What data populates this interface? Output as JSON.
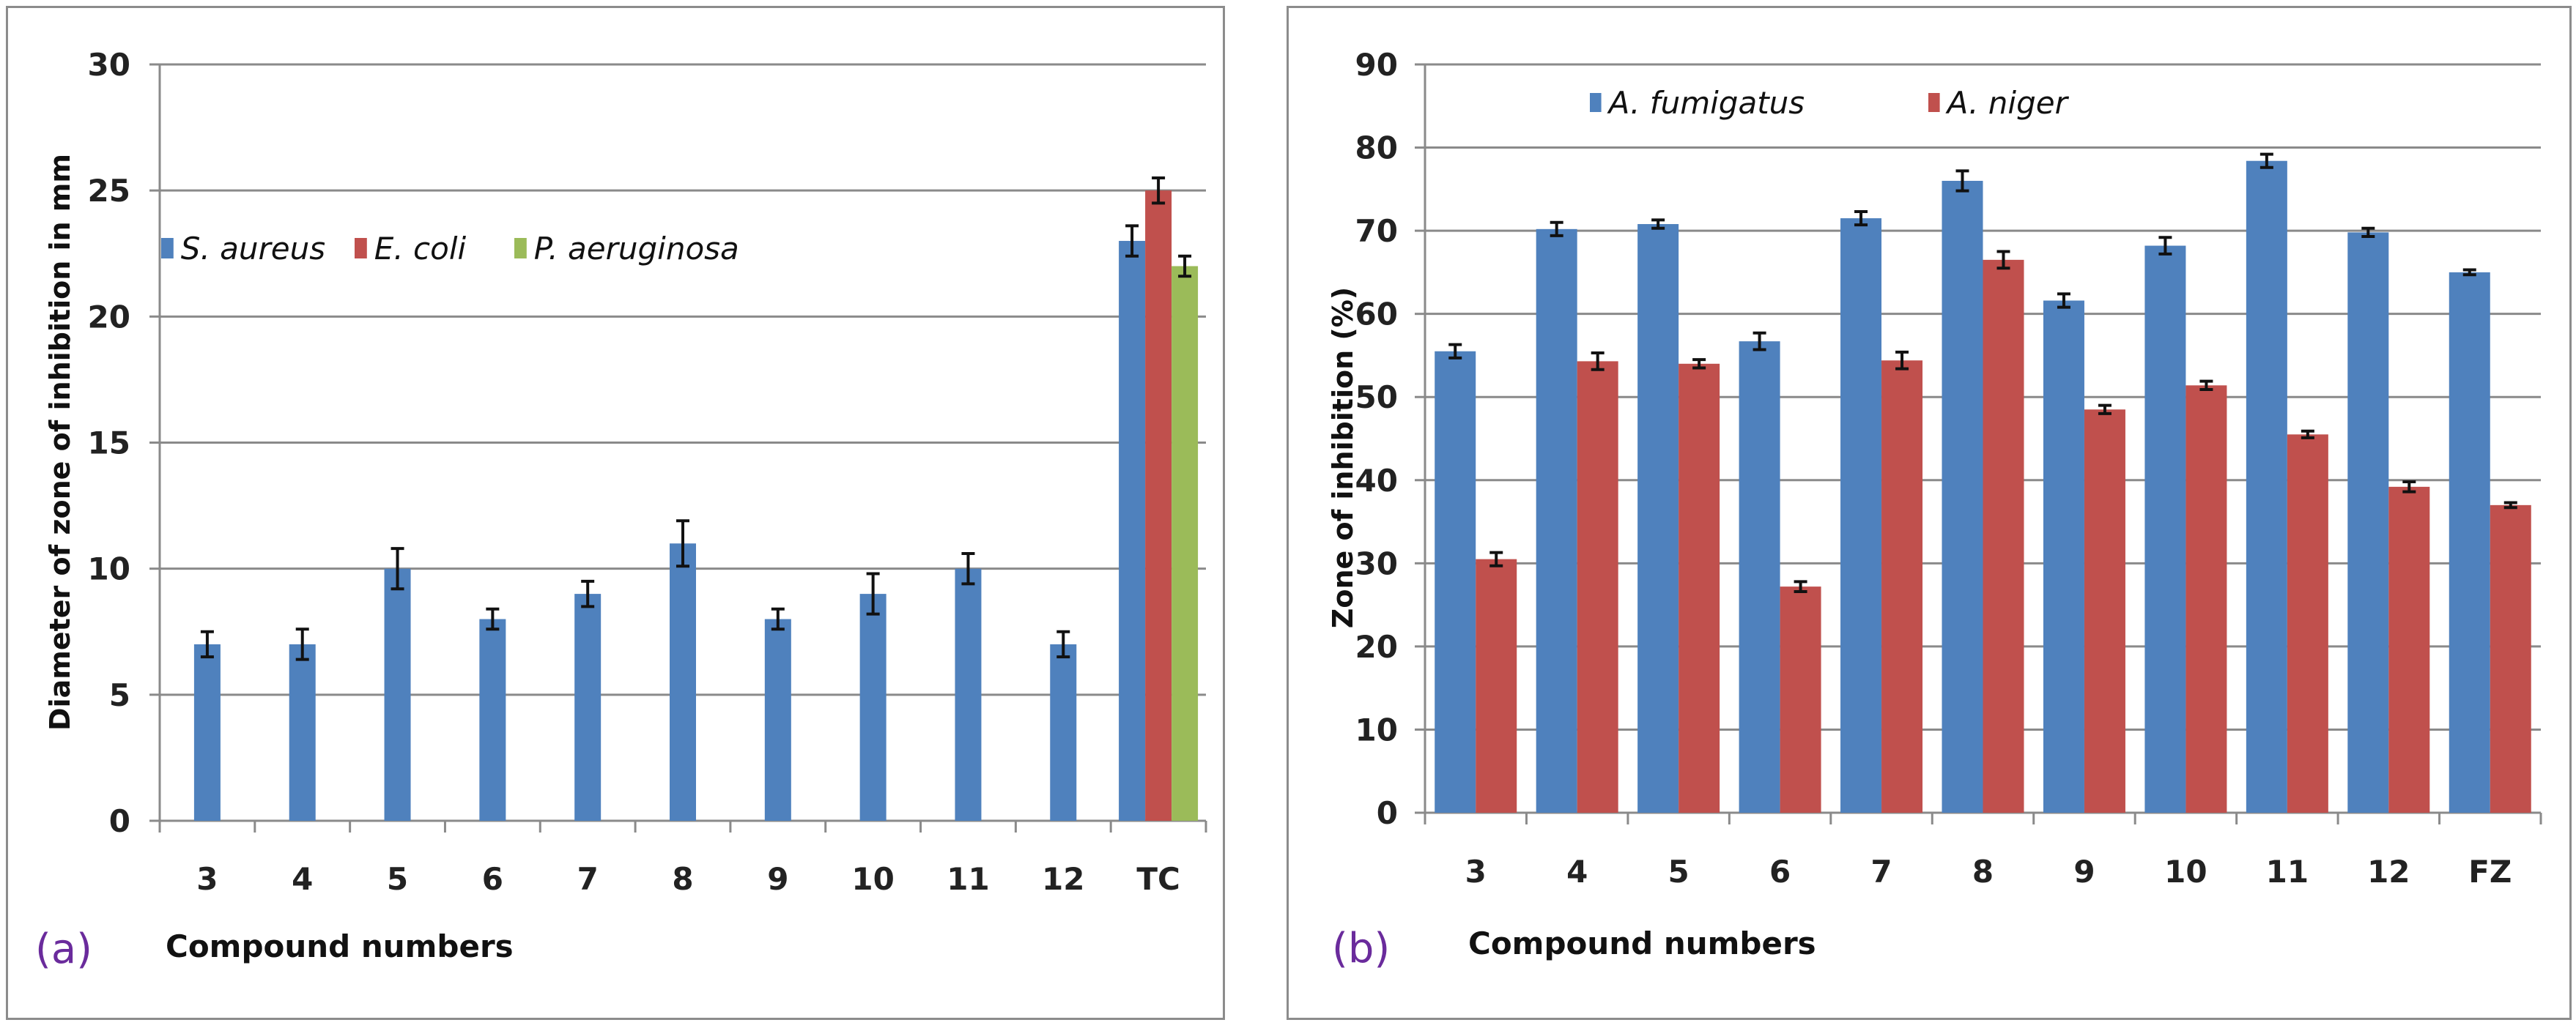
{
  "chart_data": [
    {
      "type": "bar",
      "panel_label": "(a)",
      "title": "",
      "xlabel": "Compound numbers",
      "ylabel": "Diameter of zone of inhibition  in mm",
      "ylim": [
        0,
        30
      ],
      "yticks": [
        0,
        5,
        10,
        15,
        20,
        25,
        30
      ],
      "grid": true,
      "legend_position": "upper-left",
      "categories": [
        "3",
        "4",
        "5",
        "6",
        "7",
        "8",
        "9",
        "10",
        "11",
        "12",
        "TC"
      ],
      "series": [
        {
          "name": "S. aureus",
          "color": "#4f81bd",
          "values": [
            7,
            7,
            10,
            8,
            9,
            11,
            8,
            9,
            10,
            7,
            23
          ],
          "errors": [
            0.5,
            0.6,
            0.8,
            0.4,
            0.5,
            0.9,
            0.4,
            0.8,
            0.6,
            0.5,
            0.6
          ]
        },
        {
          "name": "E. coli",
          "color": "#c0504d",
          "values": [
            null,
            null,
            null,
            null,
            null,
            null,
            null,
            null,
            null,
            null,
            25
          ],
          "errors": [
            null,
            null,
            null,
            null,
            null,
            null,
            null,
            null,
            null,
            null,
            0.5
          ]
        },
        {
          "name": "P. aeruginosa",
          "color": "#9bbb59",
          "values": [
            null,
            null,
            null,
            null,
            null,
            null,
            null,
            null,
            null,
            null,
            22
          ],
          "errors": [
            null,
            null,
            null,
            null,
            null,
            null,
            null,
            null,
            null,
            null,
            0.4
          ]
        }
      ]
    },
    {
      "type": "bar",
      "panel_label": "(b)",
      "title": "",
      "xlabel": "Compound numbers",
      "ylabel": "Zone of inhibition  (%)",
      "ylim": [
        0,
        90
      ],
      "yticks": [
        0,
        10,
        20,
        30,
        40,
        50,
        60,
        70,
        80,
        90
      ],
      "grid": true,
      "legend_position": "top",
      "categories": [
        "3",
        "4",
        "5",
        "6",
        "7",
        "8",
        "9",
        "10",
        "11",
        "12",
        "FZ"
      ],
      "series": [
        {
          "name": "A. fumigatus",
          "color": "#4f81bd",
          "values": [
            55.5,
            70.2,
            70.8,
            56.7,
            71.5,
            76.0,
            61.6,
            68.2,
            78.4,
            69.8,
            65.0
          ],
          "errors": [
            0.8,
            0.8,
            0.5,
            1.0,
            0.8,
            1.2,
            0.8,
            1.0,
            0.8,
            0.5,
            0.3
          ]
        },
        {
          "name": "A. niger",
          "color": "#c0504d",
          "values": [
            30.5,
            54.3,
            54.0,
            27.2,
            54.4,
            66.5,
            48.5,
            51.4,
            45.5,
            39.2,
            37.0
          ],
          "errors": [
            0.8,
            1.0,
            0.5,
            0.6,
            1.0,
            1.0,
            0.5,
            0.5,
            0.4,
            0.6,
            0.3
          ]
        }
      ]
    }
  ]
}
